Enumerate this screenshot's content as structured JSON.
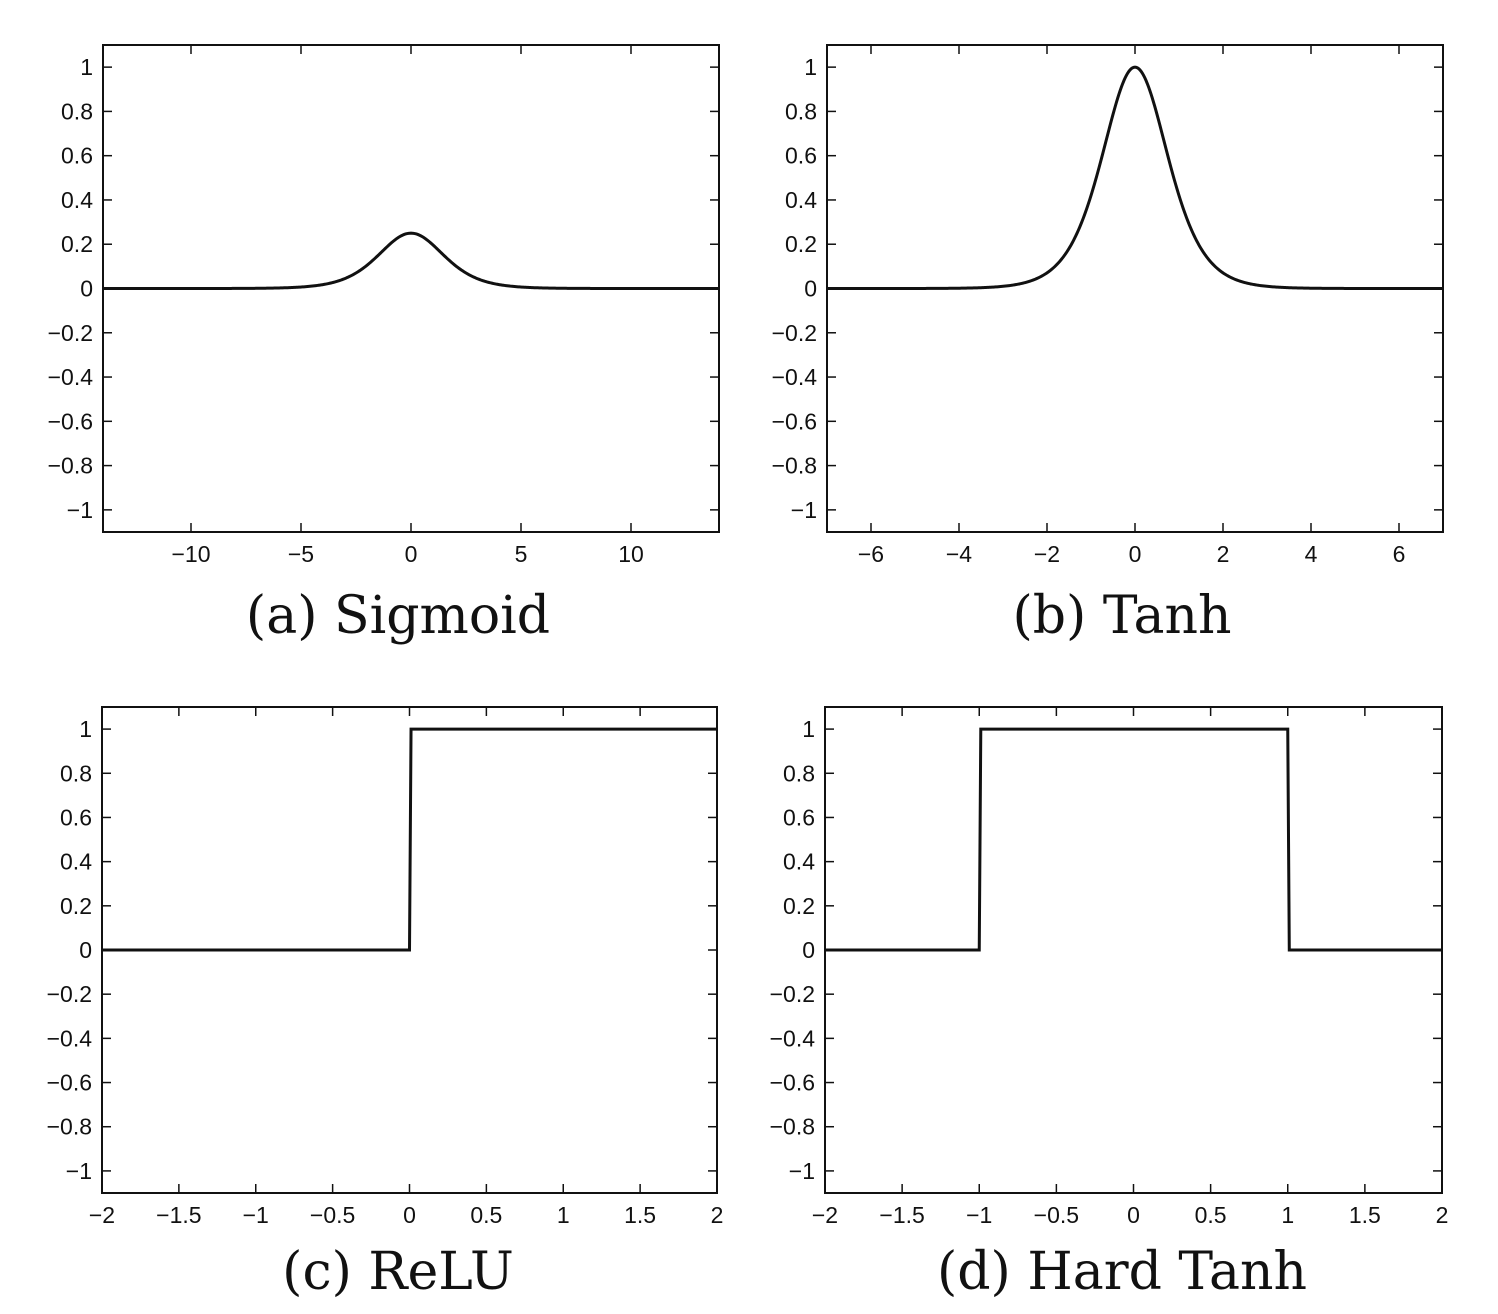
{
  "chart_data": [
    {
      "type": "line",
      "caption": "(a) Sigmoid",
      "function": "sigmoid_derivative",
      "xlim": [
        -14,
        14
      ],
      "ylim": [
        -1.1,
        1.1
      ],
      "xticks": [
        -10,
        -5,
        0,
        5,
        10
      ],
      "xtick_labels": [
        "−10",
        "−5",
        "0",
        "5",
        "10"
      ],
      "yticks": [
        1,
        0.8,
        0.6,
        0.4,
        0.2,
        0,
        -0.2,
        -0.4,
        -0.6,
        -0.8,
        -1
      ],
      "ytick_labels": [
        "1",
        "0.8",
        "0.6",
        "0.4",
        "0.2",
        "0",
        "−0.2",
        "−0.4",
        "−0.6",
        "−0.8",
        "−1"
      ],
      "series": [
        {
          "x": [
            -14,
            -10,
            -5,
            -4,
            -3,
            -2,
            -1,
            0,
            1,
            2,
            3,
            4,
            5,
            10,
            14
          ],
          "y": [
            0.0,
            0.0,
            0.007,
            0.018,
            0.045,
            0.105,
            0.197,
            0.25,
            0.197,
            0.105,
            0.045,
            0.018,
            0.007,
            0.0,
            0.0
          ]
        }
      ],
      "grid": false
    },
    {
      "type": "line",
      "caption": "(b) Tanh",
      "function": "tanh_derivative",
      "xlim": [
        -7,
        7
      ],
      "ylim": [
        -1.1,
        1.1
      ],
      "xticks": [
        -6,
        -4,
        -2,
        0,
        2,
        4,
        6
      ],
      "xtick_labels": [
        "−6",
        "−4",
        "−2",
        "0",
        "2",
        "4",
        "6"
      ],
      "yticks": [
        1,
        0.8,
        0.6,
        0.4,
        0.2,
        0,
        -0.2,
        -0.4,
        -0.6,
        -0.8,
        -1
      ],
      "ytick_labels": [
        "1",
        "0.8",
        "0.6",
        "0.4",
        "0.2",
        "0",
        "−0.2",
        "−0.4",
        "−0.6",
        "−0.8",
        "−1"
      ],
      "series": [
        {
          "x": [
            -7,
            -4,
            -3,
            -2,
            -1.5,
            -1,
            -0.5,
            0,
            0.5,
            1,
            1.5,
            2,
            3,
            4,
            7
          ],
          "y": [
            0.0,
            0.001,
            0.01,
            0.071,
            0.181,
            0.42,
            0.786,
            1.0,
            0.786,
            0.42,
            0.181,
            0.071,
            0.01,
            0.001,
            0.0
          ]
        }
      ],
      "grid": false
    },
    {
      "type": "line",
      "caption": "(c) ReLU",
      "function": "relu_derivative",
      "xlim": [
        -2,
        2
      ],
      "ylim": [
        -1.1,
        1.1
      ],
      "xticks": [
        -2,
        -1.5,
        -1,
        -0.5,
        0,
        0.5,
        1,
        1.5,
        2
      ],
      "xtick_labels": [
        "−2",
        "−1.5",
        "−1",
        "−0.5",
        "0",
        "0.5",
        "1",
        "1.5",
        "2"
      ],
      "yticks": [
        1,
        0.8,
        0.6,
        0.4,
        0.2,
        0,
        -0.2,
        -0.4,
        -0.6,
        -0.8,
        -1
      ],
      "ytick_labels": [
        "1",
        "0.8",
        "0.6",
        "0.4",
        "0.2",
        "0",
        "−0.2",
        "−0.4",
        "−0.6",
        "−0.8",
        "−1"
      ],
      "series": [
        {
          "x": [
            -2,
            0,
            0.01,
            2
          ],
          "y": [
            0,
            0,
            1,
            1
          ]
        }
      ],
      "grid": false
    },
    {
      "type": "line",
      "caption": "(d) Hard Tanh",
      "function": "hardtanh_derivative",
      "xlim": [
        -2,
        2
      ],
      "ylim": [
        -1.1,
        1.1
      ],
      "xticks": [
        -2,
        -1.5,
        -1,
        -0.5,
        0,
        0.5,
        1,
        1.5,
        2
      ],
      "xtick_labels": [
        "−2",
        "−1.5",
        "−1",
        "−0.5",
        "0",
        "0.5",
        "1",
        "1.5",
        "2"
      ],
      "yticks": [
        1,
        0.8,
        0.6,
        0.4,
        0.2,
        0,
        -0.2,
        -0.4,
        -0.6,
        -0.8,
        -1
      ],
      "ytick_labels": [
        "1",
        "0.8",
        "0.6",
        "0.4",
        "0.2",
        "0",
        "−0.2",
        "−0.4",
        "−0.6",
        "−0.8",
        "−1"
      ],
      "series": [
        {
          "x": [
            -2,
            -1,
            -0.99,
            1,
            1.01,
            2
          ],
          "y": [
            0,
            0,
            1,
            1,
            0,
            0
          ]
        }
      ],
      "grid": false
    }
  ]
}
